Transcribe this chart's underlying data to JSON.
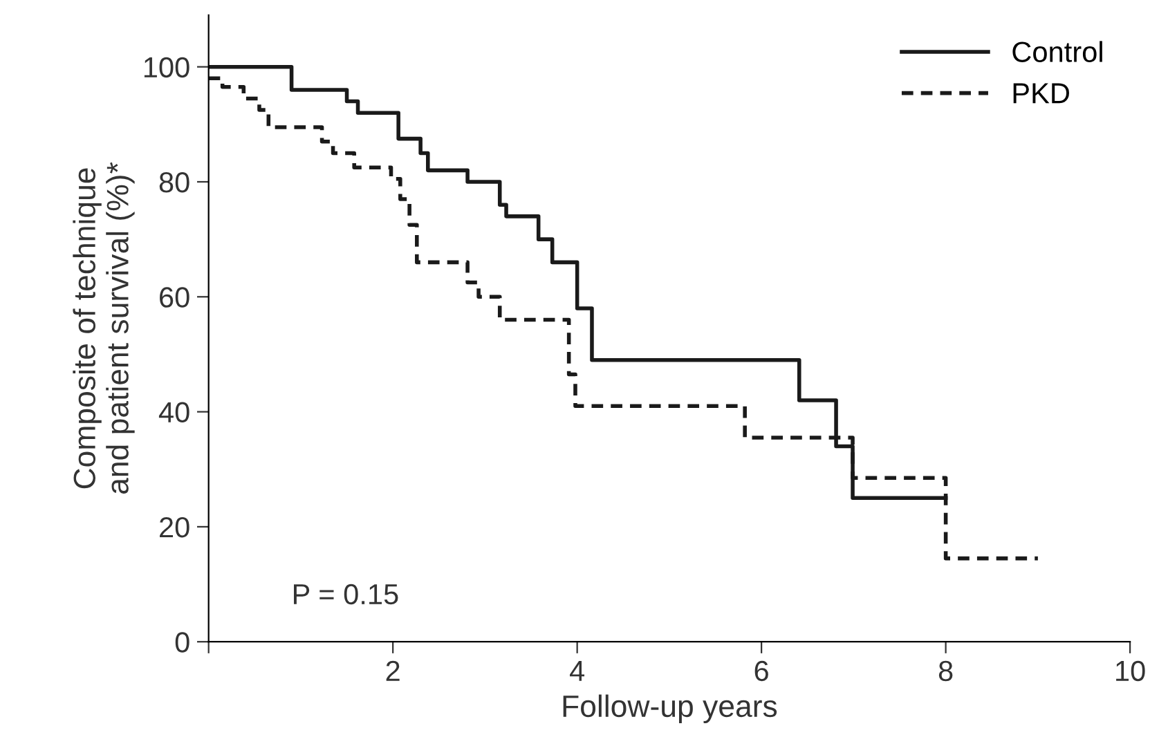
{
  "chart_data": {
    "type": "step",
    "xlabel": "Follow-up years",
    "ylabel": "Composite of technique\nand patient survival (%)*",
    "xlim": [
      0,
      10
    ],
    "ylim": [
      0,
      109
    ],
    "xticks": [
      {
        "value": 0,
        "label": null
      },
      2,
      4,
      6,
      8,
      10
    ],
    "yticks": [
      0,
      20,
      40,
      60,
      80,
      100
    ],
    "grid": false,
    "legend": "top right",
    "marker": "none",
    "annotations": [
      "P = 0.15"
    ],
    "series": [
      {
        "name": "Control",
        "color": "#1a1a1a",
        "line_style": "solid",
        "x": [
          0,
          0.9,
          1.5,
          1.62,
          2.06,
          2.3,
          2.38,
          2.81,
          3.16,
          3.23,
          3.58,
          3.73,
          4.0,
          4.16,
          6.41,
          6.81,
          6.99,
          8.0
        ],
        "values": [
          100,
          96,
          94,
          92,
          87.5,
          85,
          82,
          80,
          76,
          74,
          70,
          66,
          58,
          49,
          42,
          34,
          25,
          25
        ]
      },
      {
        "name": "PKD",
        "color": "#1a1a1a",
        "line_style": "dashed",
        "x": [
          0,
          0.15,
          0.38,
          0.55,
          0.65,
          1.23,
          1.35,
          1.58,
          1.98,
          2.08,
          2.18,
          2.26,
          2.81,
          2.93,
          3.16,
          3.91,
          3.98,
          5.82,
          6.99,
          8.0,
          9.0
        ],
        "values": [
          98,
          96.5,
          94.5,
          92.5,
          89.5,
          87,
          85,
          82.5,
          80.5,
          77,
          72.5,
          66,
          62.5,
          60,
          56,
          46.5,
          41,
          35.5,
          28.5,
          14.5,
          14.5
        ]
      }
    ]
  }
}
